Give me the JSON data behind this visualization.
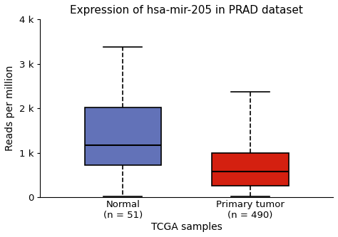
{
  "title": "Expression of hsa-mir-205 in PRAD dataset",
  "xlabel": "TCGA samples",
  "ylabel": "Reads per million",
  "ylim": [
    0,
    4000
  ],
  "yticks": [
    0,
    1000,
    2000,
    3000,
    4000
  ],
  "ytick_labels": [
    "0",
    "1 k",
    "2 k",
    "3 k",
    "4 k"
  ],
  "groups": [
    "Normal\n(n = 51)",
    "Primary tumor\n(n = 490)"
  ],
  "box_stats": [
    {
      "whislo": 20,
      "q1": 720,
      "med": 1175,
      "q3": 2020,
      "whishi": 3380
    },
    {
      "whislo": 20,
      "q1": 265,
      "med": 580,
      "q3": 1000,
      "whishi": 2370
    }
  ],
  "box_colors": [
    "#6272b8",
    "#d42010"
  ],
  "median_color": "#000000",
  "whisker_color": "#000000",
  "cap_color": "#000000",
  "box_edge_color": "#000000",
  "box_width": 0.6,
  "linewidth": 1.2,
  "median_linewidth": 1.5,
  "background_color": "#ffffff",
  "title_fontsize": 11,
  "label_fontsize": 10,
  "tick_fontsize": 9.5,
  "figsize": [
    4.74,
    3.33
  ],
  "dpi": 100
}
